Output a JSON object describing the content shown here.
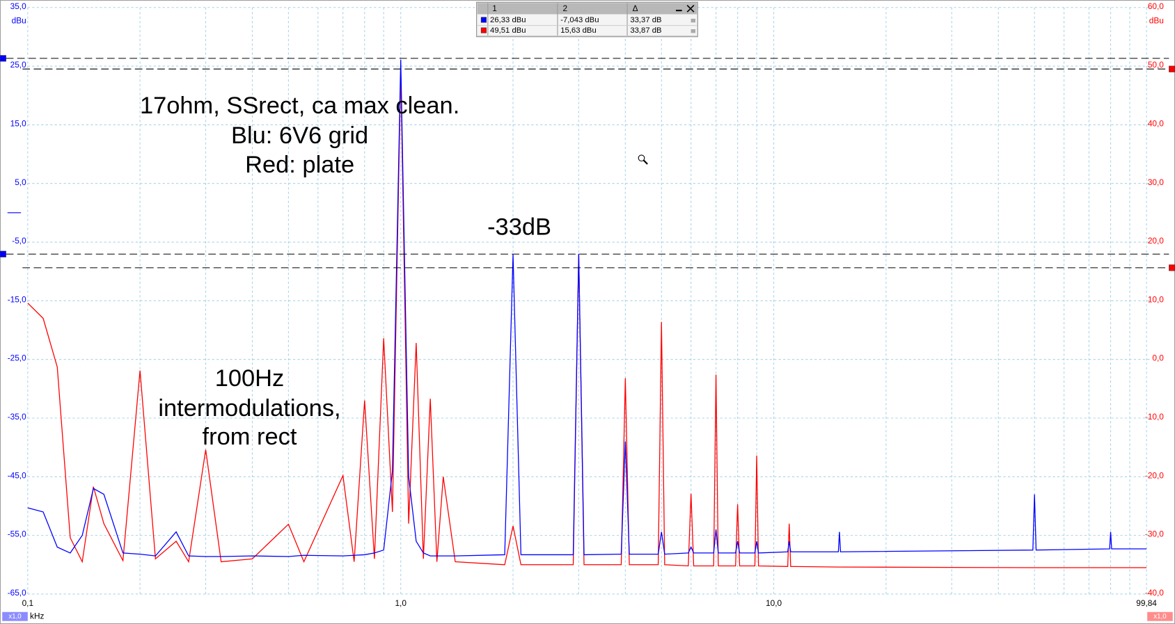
{
  "chart_data": {
    "type": "line",
    "xscale": "log",
    "grid": true,
    "xlabel": "kHz",
    "ylabel": "dBu",
    "y2label": "dBu",
    "ycolor": "#0000ff",
    "y2color": "#ff0000",
    "xlim": [
      0.1,
      99.84
    ],
    "xticks": [
      {
        "value": 0.1,
        "label": "0,1"
      },
      {
        "value": 1,
        "label": "1,0"
      },
      {
        "value": 10,
        "label": "10,0"
      },
      {
        "value": 99.84,
        "label": "99,84"
      }
    ],
    "xgrid": [
      0.2,
      0.3,
      0.4,
      0.5,
      0.6,
      0.7,
      0.8,
      0.9,
      2,
      3,
      4,
      5,
      6,
      7,
      8,
      9,
      20,
      30,
      40,
      50,
      60,
      70,
      80,
      90
    ],
    "ylim": [
      -65,
      35
    ],
    "yticks": [
      {
        "value": -65,
        "label": "-65,0"
      },
      {
        "value": -55,
        "label": "-55,0"
      },
      {
        "value": -45,
        "label": "-45,0"
      },
      {
        "value": -35,
        "label": "-35,0"
      },
      {
        "value": -25,
        "label": "-25,0"
      },
      {
        "value": -15,
        "label": "-15,0"
      },
      {
        "value": -5,
        "label": "-5,0"
      },
      {
        "value": 5,
        "label": "5,0"
      },
      {
        "value": 15,
        "label": "15,0"
      },
      {
        "value": 25,
        "label": "25,0"
      },
      {
        "value": 35,
        "label": "35,0"
      }
    ],
    "y2lim": [
      -40,
      60
    ],
    "y2ticks": [
      {
        "value": -40,
        "label": "-40,0"
      },
      {
        "value": -30,
        "label": "-30,0"
      },
      {
        "value": -20,
        "label": "-20,0"
      },
      {
        "value": -10,
        "label": "-10,0"
      },
      {
        "value": 0,
        "label": "0,0"
      },
      {
        "value": 10,
        "label": "10,0"
      },
      {
        "value": 20,
        "label": "20,0"
      },
      {
        "value": 30,
        "label": "30,0"
      },
      {
        "value": 40,
        "label": "40,0"
      },
      {
        "value": 50,
        "label": "50,0"
      },
      {
        "value": 60,
        "label": "60,0"
      }
    ],
    "x": [
      0.1,
      0.11,
      0.12,
      0.13,
      0.14,
      0.15,
      0.16,
      0.18,
      0.2,
      0.22,
      0.25,
      0.27,
      0.3,
      0.33,
      0.4,
      0.5,
      0.55,
      0.7,
      0.75,
      0.8,
      0.85,
      0.9,
      0.95,
      1.0,
      1.05,
      1.1,
      1.15,
      1.2,
      1.25,
      1.3,
      1.4,
      1.9,
      2.0,
      2.1,
      2.9,
      3.0,
      3.1,
      3.9,
      4.0,
      4.1,
      4.9,
      5.0,
      5.1,
      5.9,
      6.0,
      6.1,
      6.9,
      7.0,
      7.1,
      7.9,
      8.0,
      8.1,
      8.9,
      9.0,
      9.1,
      10.9,
      11.0,
      11.1,
      14.9,
      15.0,
      15.1,
      49.5,
      50.0,
      50.5,
      79.5,
      80.0,
      80.5,
      99.84
    ],
    "series": [
      {
        "color": "#ff0000",
        "axis": "y2",
        "values": [
          9.6,
          7,
          -1.3,
          -30.4,
          -34.5,
          -21.7,
          -28,
          -34.3,
          -1.9,
          -34,
          -31,
          -34.5,
          -15.4,
          -34.5,
          -34,
          -28.1,
          -34.5,
          -19.8,
          -34.5,
          -7,
          -34,
          3.6,
          -26,
          49.5,
          -28,
          2.8,
          -34,
          -6.7,
          -34.5,
          -20,
          -34.5,
          -35,
          -28.4,
          -35,
          -35,
          17.9,
          -35,
          -35,
          -3.2,
          -35,
          -35,
          6.4,
          -35,
          -35.2,
          -22.9,
          -35.2,
          -35.2,
          -2.6,
          -35.2,
          -35.2,
          -24.7,
          -35.2,
          -35.2,
          -16.4,
          -35.2,
          -35.3,
          -28,
          -35.3,
          -35.4,
          -35.4,
          -35.4,
          -35.5,
          -35.5,
          -35.5,
          -35.5,
          -35.5,
          -35.5,
          -35.5
        ]
      },
      {
        "color": "#0000ff",
        "values": [
          -50.3,
          -51,
          -57,
          -58,
          -55,
          -47,
          -48,
          -58,
          -58.2,
          -58.5,
          -54.4,
          -58.5,
          -58.6,
          -58.6,
          -58.5,
          -58.6,
          -58.4,
          -58.5,
          -58.4,
          -58.3,
          -58,
          -57.5,
          -44,
          26.1,
          -45,
          -56,
          -58,
          -58.5,
          -58.5,
          -58.5,
          -58.5,
          -58.3,
          -7.1,
          -58.3,
          -58.3,
          -7.0,
          -58.3,
          -58.2,
          -39,
          -58.2,
          -58.2,
          -54.4,
          -58.2,
          -58,
          -57,
          -58,
          -58,
          -54,
          -58,
          -58,
          -56,
          -58,
          -58,
          -56,
          -58,
          -57.8,
          -56,
          -57.8,
          -57.8,
          -54.4,
          -57.8,
          -57.5,
          -48,
          -57.5,
          -57.3,
          -54.4,
          -57.3,
          -57.3
        ]
      }
    ],
    "cursors": [
      {
        "axis": "y",
        "value": 26.33,
        "color": "#0000ff"
      },
      {
        "axis": "y",
        "value": -7.043,
        "color": "#0000ff"
      },
      {
        "axis": "y2",
        "value": 49.51,
        "color": "#ff0000"
      },
      {
        "axis": "y2",
        "value": 15.63,
        "color": "#ff0000"
      }
    ],
    "badges": [
      {
        "label": "x1,0",
        "color": "#8c8cff"
      },
      {
        "label": "x1,0",
        "color": "#ff8c8c"
      }
    ],
    "annotations": [
      "17ohm, SSrect, ca max clean.",
      "Blu: 6V6 grid",
      "Red: plate",
      "-33dB",
      "100Hz",
      "intermodulations,",
      "from rect"
    ]
  },
  "cursor_table": {
    "header": [
      "1",
      "2",
      "Δ"
    ],
    "rows": [
      [
        "26,33 dBu",
        "-7,043 dBu",
        "33,37 dB"
      ],
      [
        "49,51 dBu",
        "15,63 dBu",
        "33,87 dB"
      ]
    ]
  }
}
